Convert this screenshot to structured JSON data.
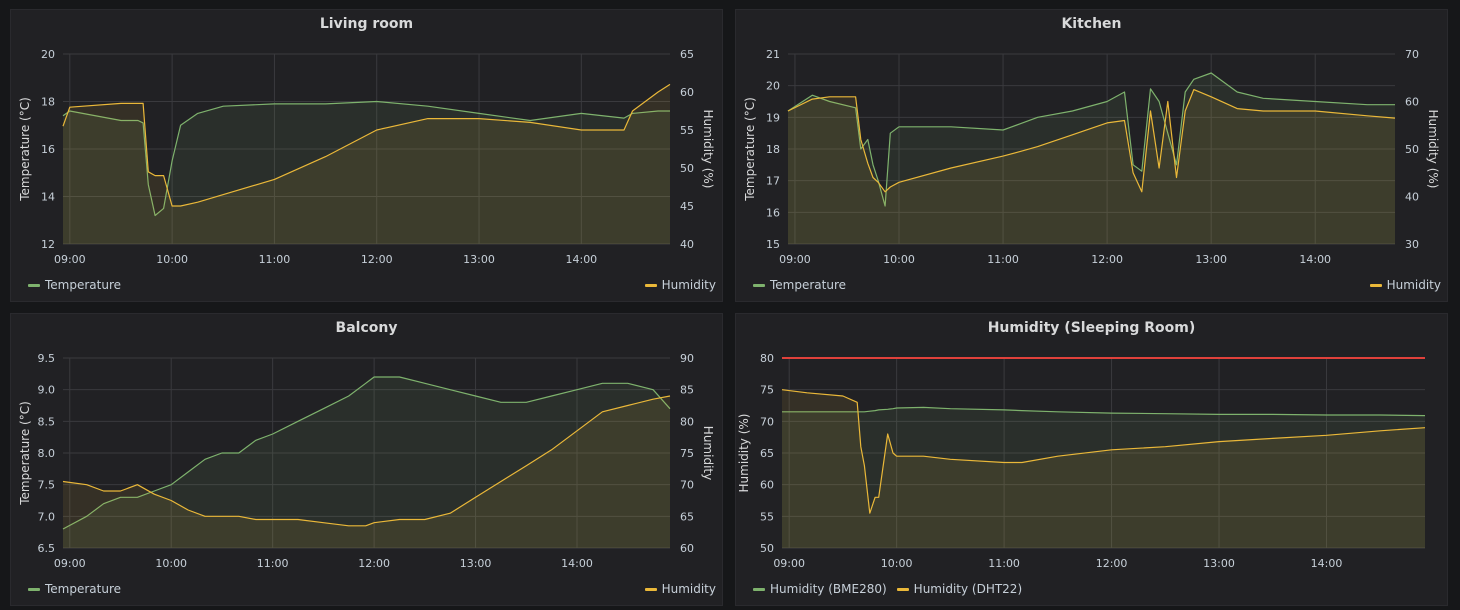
{
  "colors": {
    "temperature": "#7eb26d",
    "humidity": "#eab839",
    "threshold": "#e0413b",
    "grid": "#3a3a3e"
  },
  "panels": [
    {
      "title": "Living room",
      "left_axis": {
        "label": "Temperature (°C)",
        "ticks": [
          "12",
          "14",
          "16",
          "18",
          "20"
        ]
      },
      "right_axis": {
        "label": "Humidity (%)",
        "ticks": [
          "40",
          "45",
          "50",
          "55",
          "60",
          "65"
        ]
      },
      "x_ticks": [
        "09:00",
        "10:00",
        "11:00",
        "12:00",
        "13:00",
        "14:00"
      ],
      "legend": [
        "Temperature",
        "Humidity"
      ]
    },
    {
      "title": "Kitchen",
      "left_axis": {
        "label": "Temperature (°C)",
        "ticks": [
          "15",
          "16",
          "17",
          "18",
          "19",
          "20",
          "21"
        ]
      },
      "right_axis": {
        "label": "Humidity (%)",
        "ticks": [
          "30",
          "40",
          "50",
          "60",
          "70"
        ]
      },
      "x_ticks": [
        "09:00",
        "10:00",
        "11:00",
        "12:00",
        "13:00",
        "14:00"
      ],
      "legend": [
        "Temperature",
        "Humidity"
      ]
    },
    {
      "title": "Balcony",
      "left_axis": {
        "label": "Temperature (°C)",
        "ticks": [
          "6.5",
          "7.0",
          "7.5",
          "8.0",
          "8.5",
          "9.0",
          "9.5"
        ]
      },
      "right_axis": {
        "label": "Humidity",
        "ticks": [
          "60",
          "65",
          "70",
          "75",
          "80",
          "85",
          "90"
        ]
      },
      "x_ticks": [
        "09:00",
        "10:00",
        "11:00",
        "12:00",
        "13:00",
        "14:00"
      ],
      "legend": [
        "Temperature",
        "Humidity"
      ]
    },
    {
      "title": "Humidity (Sleeping Room)",
      "left_axis": {
        "label": "Humidity (%)",
        "ticks": [
          "50",
          "55",
          "60",
          "65",
          "70",
          "75",
          "80"
        ]
      },
      "right_axis": {
        "label": "",
        "ticks": []
      },
      "x_ticks": [
        "09:00",
        "10:00",
        "11:00",
        "12:00",
        "13:00",
        "14:00"
      ],
      "legend": [
        "Humidity (BME280)",
        "Humidity (DHT22)"
      ]
    }
  ],
  "chart_data": [
    {
      "type": "line",
      "title": "Living room",
      "ylabel": "Temperature (°C)",
      "ylim": [
        12,
        20
      ],
      "y2label": "Humidity (%)",
      "y2lim": [
        40,
        65
      ],
      "x": [
        "08:56",
        "09:00",
        "09:30",
        "09:40",
        "09:43",
        "09:46",
        "09:50",
        "09:55",
        "10:00",
        "10:05",
        "10:15",
        "10:30",
        "11:00",
        "11:30",
        "12:00",
        "12:30",
        "13:00",
        "13:30",
        "14:00",
        "14:25",
        "14:30",
        "14:45",
        "14:52"
      ],
      "series": [
        {
          "name": "Temperature",
          "axis": "left",
          "values": [
            17.4,
            17.6,
            17.2,
            17.2,
            17.1,
            14.5,
            13.2,
            13.5,
            15.5,
            17.0,
            17.5,
            17.8,
            17.9,
            17.9,
            18.0,
            17.8,
            17.5,
            17.2,
            17.5,
            17.3,
            17.5,
            17.6,
            17.6
          ]
        },
        {
          "name": "Humidity",
          "axis": "right",
          "values": [
            55.5,
            58.0,
            58.5,
            58.5,
            58.5,
            49.5,
            49.0,
            49.0,
            45.0,
            45.0,
            45.5,
            46.5,
            48.5,
            51.5,
            55.0,
            56.5,
            56.5,
            56.0,
            55.0,
            55.0,
            57.5,
            60.0,
            61.0
          ]
        }
      ]
    },
    {
      "type": "line",
      "title": "Kitchen",
      "ylabel": "Temperature (°C)",
      "ylim": [
        15,
        21
      ],
      "y2label": "Humidity (%)",
      "y2lim": [
        30,
        70
      ],
      "x": [
        "08:56",
        "09:10",
        "09:20",
        "09:35",
        "09:38",
        "09:42",
        "09:45",
        "09:48",
        "09:52",
        "09:55",
        "10:00",
        "10:30",
        "11:00",
        "11:10",
        "11:20",
        "11:40",
        "12:00",
        "12:10",
        "12:15",
        "12:20",
        "12:25",
        "12:30",
        "12:35",
        "12:40",
        "12:45",
        "12:50",
        "13:00",
        "13:15",
        "13:30",
        "14:00",
        "14:30",
        "14:46"
      ],
      "series": [
        {
          "name": "Temperature",
          "axis": "left",
          "values": [
            19.2,
            19.7,
            19.5,
            19.3,
            18.0,
            18.3,
            17.5,
            17.0,
            16.2,
            18.5,
            18.7,
            18.7,
            18.6,
            18.8,
            19.0,
            19.2,
            19.5,
            19.8,
            17.5,
            17.3,
            19.9,
            19.5,
            18.5,
            17.5,
            19.8,
            20.2,
            20.4,
            19.8,
            19.6,
            19.5,
            19.4,
            19.4
          ]
        },
        {
          "name": "Humidity",
          "axis": "right",
          "values": [
            58.0,
            60.5,
            61.0,
            61.0,
            52.0,
            47.0,
            44.0,
            43.0,
            41.0,
            42.0,
            43.0,
            46.0,
            48.5,
            49.5,
            50.5,
            53.0,
            55.5,
            56.0,
            45.0,
            41.0,
            58.0,
            46.0,
            60.0,
            44.0,
            58.0,
            62.5,
            61.0,
            58.5,
            58.0,
            58.0,
            57.0,
            56.5
          ]
        }
      ]
    },
    {
      "type": "line",
      "title": "Balcony",
      "ylabel": "Temperature (°C)",
      "ylim": [
        6.5,
        9.5
      ],
      "y2label": "Humidity",
      "y2lim": [
        60,
        90
      ],
      "x": [
        "08:56",
        "09:10",
        "09:20",
        "09:30",
        "09:40",
        "09:50",
        "10:00",
        "10:10",
        "10:20",
        "10:30",
        "10:40",
        "10:50",
        "11:00",
        "11:15",
        "11:30",
        "11:45",
        "11:55",
        "12:00",
        "12:15",
        "12:30",
        "12:45",
        "13:00",
        "13:15",
        "13:30",
        "13:45",
        "14:00",
        "14:15",
        "14:30",
        "14:45",
        "14:55"
      ],
      "series": [
        {
          "name": "Temperature",
          "axis": "left",
          "values": [
            6.8,
            7.0,
            7.2,
            7.3,
            7.3,
            7.4,
            7.5,
            7.7,
            7.9,
            8.0,
            8.0,
            8.2,
            8.3,
            8.5,
            8.7,
            8.9,
            9.1,
            9.2,
            9.2,
            9.1,
            9.0,
            8.9,
            8.8,
            8.8,
            8.9,
            9.0,
            9.1,
            9.1,
            9.0,
            8.7
          ]
        },
        {
          "name": "Humidity",
          "axis": "right",
          "values": [
            70.5,
            70.0,
            69.0,
            69.0,
            70.0,
            68.5,
            67.5,
            66.0,
            65.0,
            65.0,
            65.0,
            64.5,
            64.5,
            64.5,
            64.0,
            63.5,
            63.5,
            64.0,
            64.5,
            64.5,
            65.5,
            68.0,
            70.5,
            73.0,
            75.5,
            78.5,
            81.5,
            82.5,
            83.5,
            84.0
          ]
        }
      ]
    },
    {
      "type": "line",
      "title": "Humidity (Sleeping Room)",
      "ylabel": "Humidity (%)",
      "ylim": [
        50,
        80
      ],
      "threshold": 80,
      "x": [
        "08:56",
        "09:10",
        "09:30",
        "09:38",
        "09:40",
        "09:42",
        "09:45",
        "09:48",
        "09:50",
        "09:55",
        "09:58",
        "10:00",
        "10:15",
        "10:30",
        "11:00",
        "11:10",
        "11:30",
        "12:00",
        "12:30",
        "13:00",
        "13:30",
        "14:00",
        "14:30",
        "14:55"
      ],
      "series": [
        {
          "name": "Humidity (BME280)",
          "axis": "left",
          "values": [
            71.5,
            71.5,
            71.5,
            71.5,
            71.5,
            71.5,
            71.6,
            71.7,
            71.8,
            71.9,
            72.0,
            72.1,
            72.2,
            72.0,
            71.8,
            71.7,
            71.5,
            71.3,
            71.2,
            71.1,
            71.1,
            71.0,
            71.0,
            70.9
          ]
        },
        {
          "name": "Humidity (DHT22)",
          "axis": "left",
          "values": [
            75.0,
            74.5,
            74.0,
            73.0,
            66.0,
            63.0,
            55.5,
            58.0,
            58.0,
            68.0,
            65.0,
            64.5,
            64.5,
            64.0,
            63.5,
            63.5,
            64.5,
            65.5,
            66.0,
            66.8,
            67.3,
            67.8,
            68.5,
            69.0
          ]
        }
      ]
    }
  ]
}
